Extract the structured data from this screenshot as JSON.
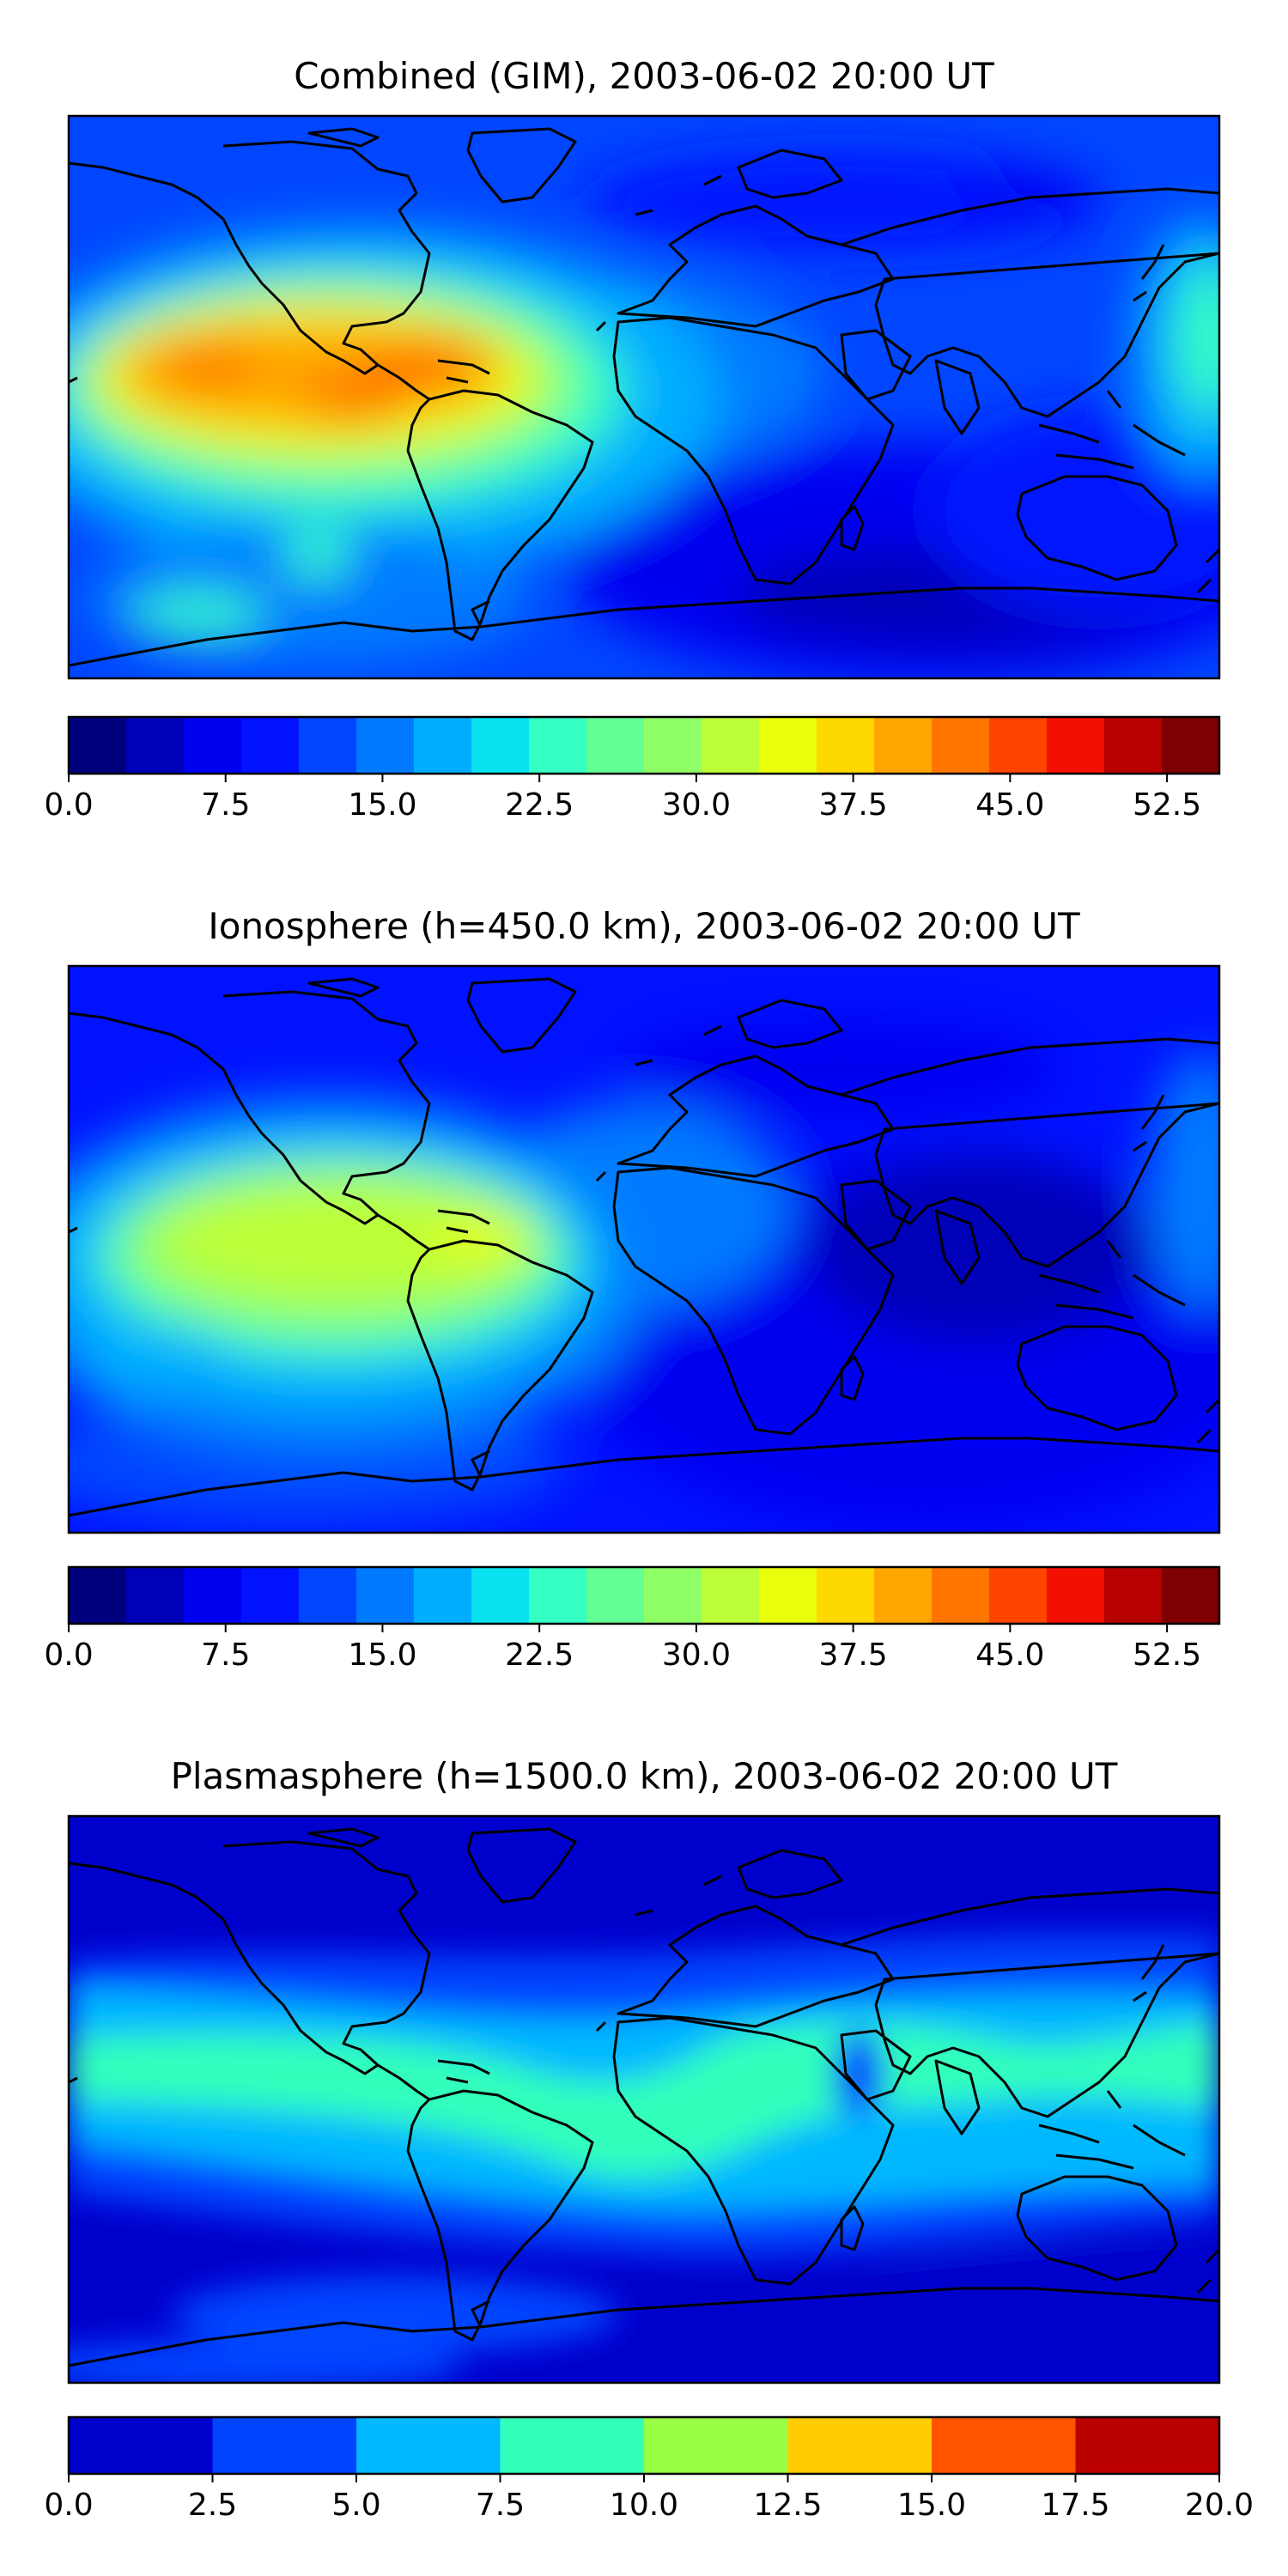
{
  "chart_data": [
    {
      "type": "heatmap",
      "title": "Combined (GIM), 2003-06-02 20:00 UT",
      "xlabel": "",
      "ylabel": "",
      "colorbar": {
        "colors": [
          "#00007f",
          "#0000b8",
          "#0000f1",
          "#0012ff",
          "#0046ff",
          "#007aff",
          "#00aeff",
          "#08e2ef",
          "#35ffc2",
          "#62ff94",
          "#8fff66",
          "#bcff39",
          "#e9ff0b",
          "#ffd800",
          "#ffa700",
          "#ff7500",
          "#ff4400",
          "#f41000",
          "#b70000",
          "#7f0000"
        ],
        "min": 0.0,
        "max": 55.0,
        "ticks": [
          "0.0",
          "7.5",
          "15.0",
          "22.5",
          "30.0",
          "37.5",
          "45.0",
          "52.5"
        ],
        "tick_values": [
          0.0,
          7.5,
          15.0,
          22.5,
          30.0,
          37.5,
          45.0,
          52.5
        ]
      },
      "notes_visible": "map of total electron content with continent outlines"
    },
    {
      "type": "heatmap",
      "title": "Ionosphere  (h=450.0 km), 2003-06-02 20:00 UT",
      "xlabel": "",
      "ylabel": "",
      "colorbar": {
        "colors": [
          "#00007f",
          "#0000b8",
          "#0000f1",
          "#0012ff",
          "#0046ff",
          "#007aff",
          "#00aeff",
          "#08e2ef",
          "#35ffc2",
          "#62ff94",
          "#8fff66",
          "#bcff39",
          "#e9ff0b",
          "#ffd800",
          "#ffa700",
          "#ff7500",
          "#ff4400",
          "#f41000",
          "#b70000",
          "#7f0000"
        ],
        "min": 0.0,
        "max": 55.0,
        "ticks": [
          "0.0",
          "7.5",
          "15.0",
          "22.5",
          "30.0",
          "37.5",
          "45.0",
          "52.5"
        ],
        "tick_values": [
          0.0,
          7.5,
          15.0,
          22.5,
          30.0,
          37.5,
          45.0,
          52.5
        ]
      }
    },
    {
      "type": "heatmap",
      "title": "Plasmasphere (h=1500.0 km), 2003-06-02 20:00 UT",
      "xlabel": "",
      "ylabel": "",
      "colorbar": {
        "colors": [
          "#0000cc",
          "#0044ff",
          "#00b8ff",
          "#33ffbb",
          "#99ff44",
          "#ffcc00",
          "#ff5500",
          "#bb0000"
        ],
        "min": 0.0,
        "max": 20.0,
        "ticks": [
          "0.0",
          "2.5",
          "5.0",
          "7.5",
          "10.0",
          "12.5",
          "15.0",
          "17.5",
          "20.0"
        ],
        "tick_values": [
          0.0,
          2.5,
          5.0,
          7.5,
          10.0,
          12.5,
          15.0,
          17.5,
          20.0
        ]
      }
    }
  ]
}
